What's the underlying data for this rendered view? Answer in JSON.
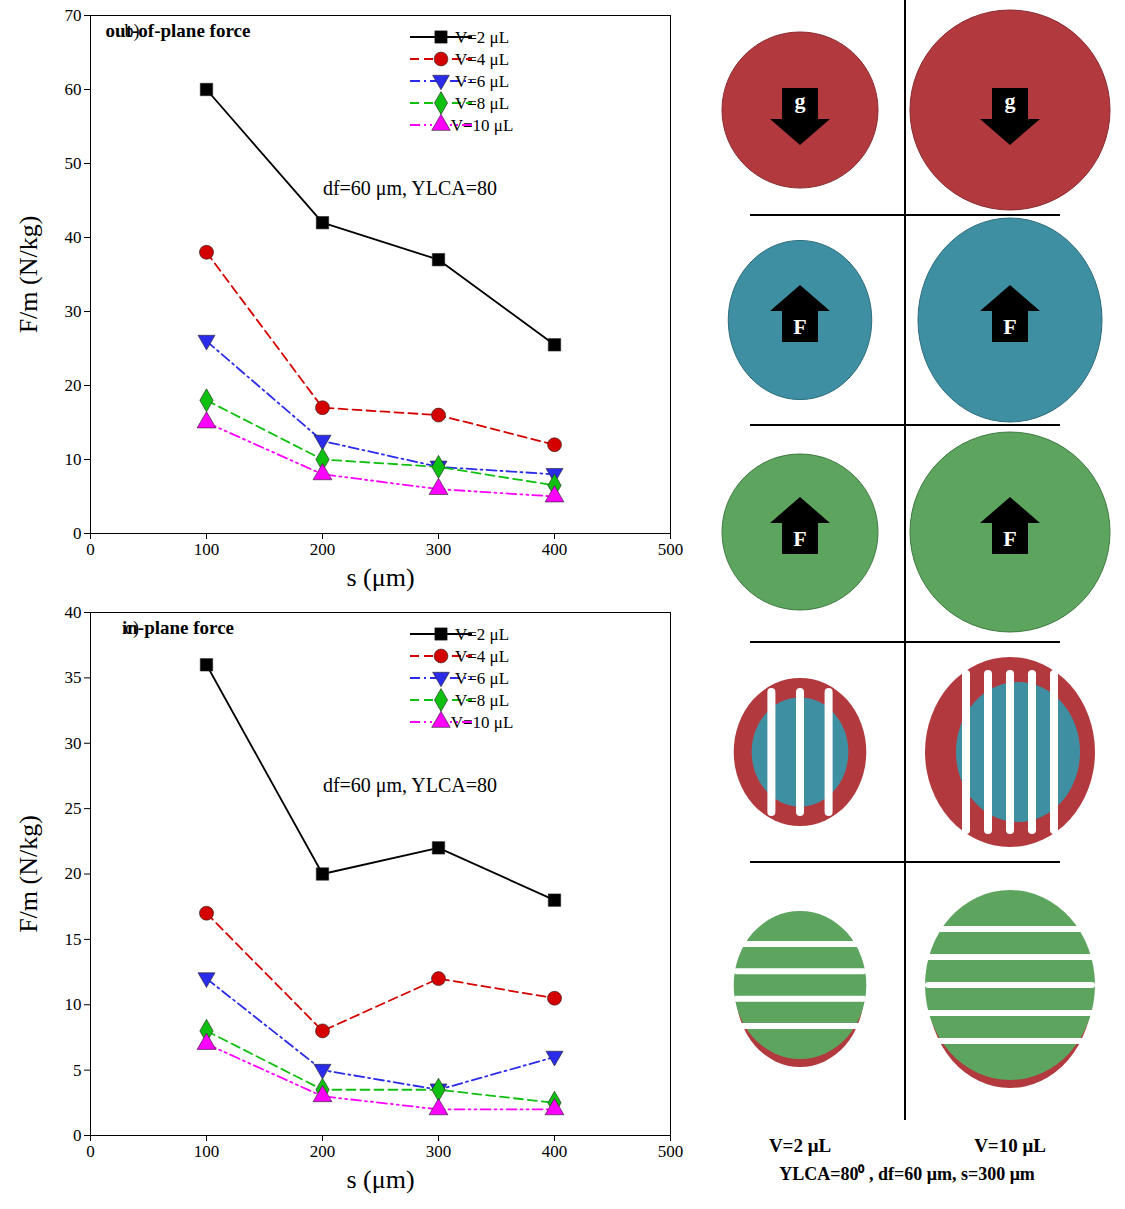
{
  "chart_data": [
    {
      "type": "line",
      "panel_label": "b)",
      "title": "out-of-plane force",
      "annotation": "df=60 μm, YLCA=80",
      "x_label": "s (μm)",
      "y_label": "F/m (N/kg)",
      "x": [
        100,
        200,
        300,
        400
      ],
      "xlim": [
        0,
        500
      ],
      "xticks": [
        0,
        100,
        200,
        300,
        400,
        500
      ],
      "ylim": [
        0,
        70
      ],
      "yticks": [
        0,
        10,
        20,
        30,
        40,
        50,
        60,
        70
      ],
      "grid": false,
      "legend": "top-right",
      "series": [
        {
          "name": "V=2 μL",
          "color": "#000000",
          "marker": "square",
          "line_style": "solid",
          "values": [
            60,
            42,
            37,
            25.5
          ]
        },
        {
          "name": "V=4 μL",
          "color": "#d40000",
          "marker": "circle",
          "line_style": "dashed",
          "values": [
            38,
            17,
            16,
            12
          ]
        },
        {
          "name": "V=6 μL",
          "color": "#2b2bea",
          "marker": "triangle-down",
          "line_style": "dashdot",
          "values": [
            26,
            12.5,
            9,
            8
          ]
        },
        {
          "name": "V=8 μL",
          "color": "#10c010",
          "marker": "diamond",
          "line_style": "dashed",
          "values": [
            18,
            10,
            9,
            6.5
          ]
        },
        {
          "name": "V=10 μL",
          "color": "#ff00ff",
          "marker": "triangle",
          "line_style": "dashdotdot",
          "values": [
            15,
            8,
            6,
            5
          ]
        }
      ]
    },
    {
      "type": "line",
      "panel_label": "c)",
      "title": "in-plane force",
      "annotation": "df=60 μm, YLCA=80",
      "x_label": "s (μm)",
      "y_label": "F/m (N/kg)",
      "x": [
        100,
        200,
        300,
        400
      ],
      "xlim": [
        0,
        500
      ],
      "xticks": [
        0,
        100,
        200,
        300,
        400,
        500
      ],
      "ylim": [
        0,
        40
      ],
      "yticks": [
        0,
        5,
        10,
        15,
        20,
        25,
        30,
        35,
        40
      ],
      "grid": false,
      "legend": "top-right",
      "series": [
        {
          "name": "V=2 μL",
          "color": "#000000",
          "marker": "square",
          "line_style": "solid",
          "values": [
            36,
            20,
            22,
            18
          ]
        },
        {
          "name": "V=4 μL",
          "color": "#d40000",
          "marker": "circle",
          "line_style": "dashed",
          "values": [
            17,
            8,
            12,
            10.5
          ]
        },
        {
          "name": "V=6 μL",
          "color": "#2b2bea",
          "marker": "triangle-down",
          "line_style": "dashdot",
          "values": [
            12,
            5,
            3.5,
            6
          ]
        },
        {
          "name": "V=8 μL",
          "color": "#10c010",
          "marker": "diamond",
          "line_style": "dashed",
          "values": [
            8,
            3.5,
            3.5,
            2.5
          ]
        },
        {
          "name": "V=10 μL",
          "color": "#ff00ff",
          "marker": "triangle",
          "line_style": "dashdotdot",
          "values": [
            7,
            3,
            2,
            2
          ]
        }
      ]
    }
  ],
  "illustration": {
    "columns": [
      "V=2 μL",
      "V=10 μL"
    ],
    "arrows": [
      "g",
      "F",
      "F"
    ],
    "caption": "YLCA=80⁰ , df=60 μm, s=300 μm"
  }
}
